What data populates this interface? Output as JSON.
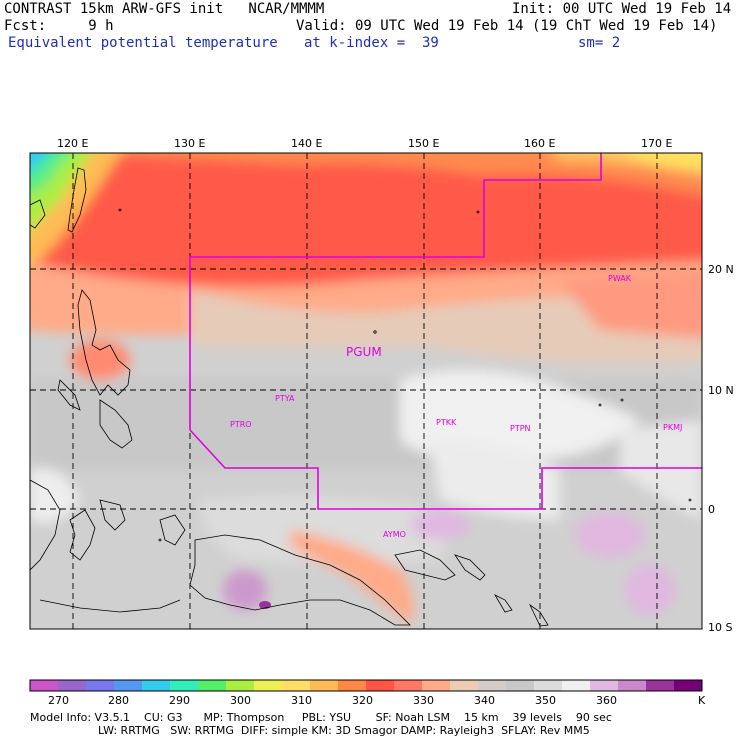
{
  "header": {
    "line1_left": "CONTRAST 15km ARW-GFS init   NCAR/MMMM",
    "line1_right": "Init: 00 UTC Wed 19 Feb 14",
    "line2_left": "Fcst:     9 h",
    "line2_right": "Valid: 09 UTC Wed 19 Feb 14 (19 ChT Wed 19 Feb 14)",
    "line3_left": "Equivalent potential temperature",
    "line3_mid": "at k-index =  39",
    "line3_right": "sm= 2"
  },
  "map": {
    "lon_ticks": [
      "120 E",
      "130 E",
      "140 E",
      "150 E",
      "160 E",
      "170 E"
    ],
    "lat_ticks": [
      "20 N",
      "10 N",
      "0",
      "10 S"
    ],
    "stations": [
      "PGUM",
      "PTYA",
      "PTRO",
      "PTKK",
      "PTPN",
      "PKMJ",
      "PWAK",
      "AYMO"
    ],
    "colors": {
      "boundary": "#e000e0",
      "grid": "#000000"
    }
  },
  "colorbar": {
    "colors": [
      "#cc55cc",
      "#9966cc",
      "#7777ee",
      "#5599ee",
      "#33ccee",
      "#33eebb",
      "#55ee66",
      "#aaee44",
      "#eeee55",
      "#ffdd66",
      "#ffbb55",
      "#ff8844",
      "#ff5544",
      "#ff7766",
      "#ffaa88",
      "#eecbb4",
      "#d4ccc8",
      "#c8c8c8",
      "#dcdcdc",
      "#f0f0f0",
      "#e0b8e0",
      "#cc88cc",
      "#993399",
      "#770077"
    ],
    "labels": [
      "270",
      "280",
      "290",
      "300",
      "310",
      "320",
      "330",
      "340",
      "350",
      "360"
    ],
    "unit": "K"
  },
  "model_info": {
    "line1": "Model Info: V3.5.1    CU: G3      MP: Thompson     PBL: YSU       SF: Noah LSM    15 km    39 levels    90 sec",
    "line2": "LW: RRTMG   SW: RRTMG  DIFF: simple KM: 3D Smagor DAMP: Rayleigh3  SFLAY: Rev MM5"
  }
}
